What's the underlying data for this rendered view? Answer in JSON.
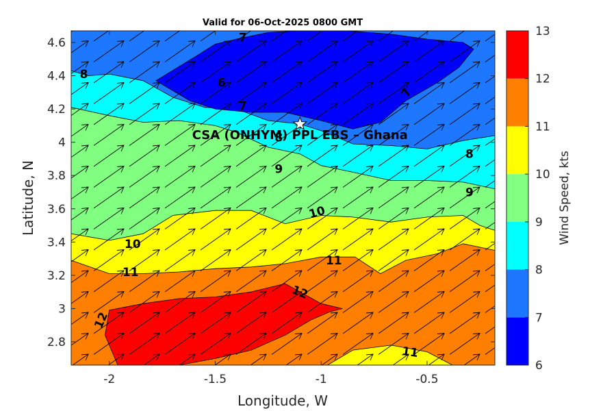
{
  "chart_data": {
    "type": "contour",
    "title": "Valid for 06-Oct-2025 0800 GMT",
    "xlabel": "Longitude, W",
    "ylabel": "Latitude, N",
    "xlim": [
      -2.18,
      -0.18
    ],
    "ylim": [
      2.66,
      4.67
    ],
    "x_ticks": [
      {
        "value": -2,
        "label": "-2"
      },
      {
        "value": -1.5,
        "label": "-1.5"
      },
      {
        "value": -1,
        "label": "-1"
      },
      {
        "value": -0.5,
        "label": "-0.5"
      }
    ],
    "y_ticks": [
      {
        "value": 2.8,
        "label": "2.8"
      },
      {
        "value": 3,
        "label": "3"
      },
      {
        "value": 3.2,
        "label": "3.2"
      },
      {
        "value": 3.4,
        "label": "3.4"
      },
      {
        "value": 3.6,
        "label": "3.6"
      },
      {
        "value": 3.8,
        "label": "3.8"
      },
      {
        "value": 4,
        "label": "4"
      },
      {
        "value": 4.2,
        "label": "4.2"
      },
      {
        "value": 4.4,
        "label": "4.4"
      },
      {
        "value": 4.6,
        "label": "4.6"
      }
    ],
    "colorbar": {
      "label": "Wind Speed, kts",
      "levels": [
        6,
        7,
        8,
        9,
        10,
        11,
        12,
        13
      ],
      "tick_labels": [
        "6",
        "7",
        "8",
        "9",
        "10",
        "11",
        "12",
        "13"
      ],
      "colors": [
        "#0000ff",
        "#1e78ff",
        "#00ffff",
        "#80ff80",
        "#ffff00",
        "#ff8000",
        "#ff0000"
      ]
    },
    "fill_regions": [
      {
        "level": 7,
        "color": "#1e78ff",
        "points": [
          [
            -2.18,
            4.67
          ],
          [
            -0.18,
            4.67
          ],
          [
            -0.18,
            2.66
          ],
          [
            -2.18,
            2.66
          ]
        ]
      },
      {
        "level": 8,
        "color": "#00ffff",
        "points": [
          [
            -2.18,
            4.43
          ],
          [
            -2.1,
            4.4
          ],
          [
            -2.0,
            4.41
          ],
          [
            -1.84,
            4.37
          ],
          [
            -1.7,
            4.27
          ],
          [
            -1.55,
            4.21
          ],
          [
            -1.4,
            4.2
          ],
          [
            -1.25,
            4.13
          ],
          [
            -1.1,
            4.11
          ],
          [
            -1.0,
            4.07
          ],
          [
            -0.85,
            3.99
          ],
          [
            -0.67,
            3.98
          ],
          [
            -0.5,
            3.96
          ],
          [
            -0.33,
            4.01
          ],
          [
            -0.18,
            4.04
          ],
          [
            -0.18,
            2.66
          ],
          [
            -2.18,
            2.66
          ]
        ]
      },
      {
        "level": 9,
        "color": "#80ff80",
        "points": [
          [
            -2.18,
            4.21
          ],
          [
            -2.0,
            4.16
          ],
          [
            -1.84,
            4.12
          ],
          [
            -1.67,
            4.13
          ],
          [
            -1.5,
            4.1
          ],
          [
            -1.4,
            4.06
          ],
          [
            -1.25,
            3.97
          ],
          [
            -1.1,
            3.93
          ],
          [
            -1.0,
            3.86
          ],
          [
            -0.85,
            3.82
          ],
          [
            -0.67,
            3.77
          ],
          [
            -0.5,
            3.77
          ],
          [
            -0.33,
            3.76
          ],
          [
            -0.18,
            3.72
          ],
          [
            -0.18,
            2.66
          ],
          [
            -2.18,
            2.66
          ]
        ]
      },
      {
        "level": 10,
        "color": "#ffff00",
        "points": [
          [
            -2.18,
            3.45
          ],
          [
            -2.0,
            3.41
          ],
          [
            -1.84,
            3.45
          ],
          [
            -1.7,
            3.56
          ],
          [
            -1.5,
            3.59
          ],
          [
            -1.33,
            3.59
          ],
          [
            -1.17,
            3.51
          ],
          [
            -1.0,
            3.56
          ],
          [
            -0.85,
            3.55
          ],
          [
            -0.67,
            3.52
          ],
          [
            -0.5,
            3.55
          ],
          [
            -0.33,
            3.56
          ],
          [
            -0.25,
            3.5
          ],
          [
            -0.18,
            3.47
          ],
          [
            -0.18,
            2.66
          ],
          [
            -2.18,
            2.66
          ]
        ]
      },
      {
        "level": 11,
        "color": "#ff8000",
        "points": [
          [
            -2.18,
            3.29
          ],
          [
            -2.0,
            3.21
          ],
          [
            -1.84,
            3.21
          ],
          [
            -1.67,
            3.22
          ],
          [
            -1.5,
            3.24
          ],
          [
            -1.33,
            3.25
          ],
          [
            -1.17,
            3.27
          ],
          [
            -1.0,
            3.31
          ],
          [
            -0.84,
            3.31
          ],
          [
            -0.72,
            3.21
          ],
          [
            -0.6,
            3.29
          ],
          [
            -0.45,
            3.33
          ],
          [
            -0.33,
            3.39
          ],
          [
            -0.18,
            3.35
          ],
          [
            -0.18,
            2.66
          ],
          [
            -2.18,
            2.66
          ]
        ]
      },
      {
        "level": 12,
        "color": "#ff0000",
        "points": [
          [
            -2.02,
            2.84
          ],
          [
            -2.0,
            2.99
          ],
          [
            -1.84,
            3.03
          ],
          [
            -1.67,
            3.06
          ],
          [
            -1.5,
            3.07
          ],
          [
            -1.33,
            3.1
          ],
          [
            -1.17,
            3.15
          ],
          [
            -1.0,
            3.03
          ],
          [
            -0.9,
            3.0
          ],
          [
            -0.96,
            2.98
          ],
          [
            -1.05,
            2.93
          ],
          [
            -1.17,
            2.84
          ],
          [
            -1.33,
            2.75
          ],
          [
            -1.5,
            2.7
          ],
          [
            -1.67,
            2.66
          ],
          [
            -1.96,
            2.66
          ]
        ]
      },
      {
        "level": 11,
        "color": "#ffff00",
        "points": [
          [
            -0.97,
            2.66
          ],
          [
            -0.85,
            2.75
          ],
          [
            -0.67,
            2.78
          ],
          [
            -0.5,
            2.74
          ],
          [
            -0.38,
            2.66
          ]
        ]
      },
      {
        "level": 7,
        "color": "#0000ff",
        "points": [
          [
            -1.78,
            4.37
          ],
          [
            -1.6,
            4.51
          ],
          [
            -1.5,
            4.59
          ],
          [
            -1.4,
            4.62
          ],
          [
            -1.25,
            4.66
          ],
          [
            -1.1,
            4.67
          ],
          [
            -0.88,
            4.67
          ],
          [
            -0.67,
            4.65
          ],
          [
            -0.5,
            4.62
          ],
          [
            -0.33,
            4.6
          ],
          [
            -0.28,
            4.56
          ],
          [
            -0.35,
            4.45
          ],
          [
            -0.45,
            4.36
          ],
          [
            -0.6,
            4.25
          ],
          [
            -0.72,
            4.12
          ],
          [
            -0.85,
            4.08
          ],
          [
            -1.0,
            4.13
          ],
          [
            -1.17,
            4.18
          ],
          [
            -1.33,
            4.18
          ],
          [
            -1.5,
            4.2
          ],
          [
            -1.62,
            4.25
          ]
        ]
      }
    ],
    "contour_labels": [
      {
        "text": "6",
        "x": -1.47,
        "y": 4.36,
        "angle": 0
      },
      {
        "text": "7",
        "x": -1.37,
        "y": 4.63,
        "angle": 0
      },
      {
        "text": "7",
        "x": -1.37,
        "y": 4.22,
        "angle": 0
      },
      {
        "text": "7",
        "x": -0.6,
        "y": 4.3,
        "angle": -62
      },
      {
        "text": "8",
        "x": -2.12,
        "y": 4.41,
        "angle": 0
      },
      {
        "text": "8",
        "x": -1.2,
        "y": 4.03,
        "angle": 0
      },
      {
        "text": "8",
        "x": -0.3,
        "y": 3.93,
        "angle": 0
      },
      {
        "text": "9",
        "x": -1.2,
        "y": 3.84,
        "angle": 0
      },
      {
        "text": "9",
        "x": -0.3,
        "y": 3.7,
        "angle": 0
      },
      {
        "text": "10",
        "x": -1.89,
        "y": 3.39,
        "angle": 0
      },
      {
        "text": "10",
        "x": -1.02,
        "y": 3.58,
        "angle": -16
      },
      {
        "text": "11",
        "x": -1.9,
        "y": 3.22,
        "angle": 0
      },
      {
        "text": "11",
        "x": -0.94,
        "y": 3.29,
        "angle": 0
      },
      {
        "text": "11",
        "x": -0.58,
        "y": 2.74,
        "angle": 8
      },
      {
        "text": "12",
        "x": -1.1,
        "y": 3.1,
        "angle": 22
      },
      {
        "text": "12",
        "x": -2.04,
        "y": 2.93,
        "angle": -66
      }
    ],
    "site": {
      "name": "CSA (ONHYM) PPL EBS  – Ghana",
      "x": -1.1,
      "y": 4.11
    },
    "wind_vectors": {
      "direction": "southwesterly (blowing toward NE)",
      "x_spacing": 0.167,
      "y_spacing": 0.124
    }
  }
}
